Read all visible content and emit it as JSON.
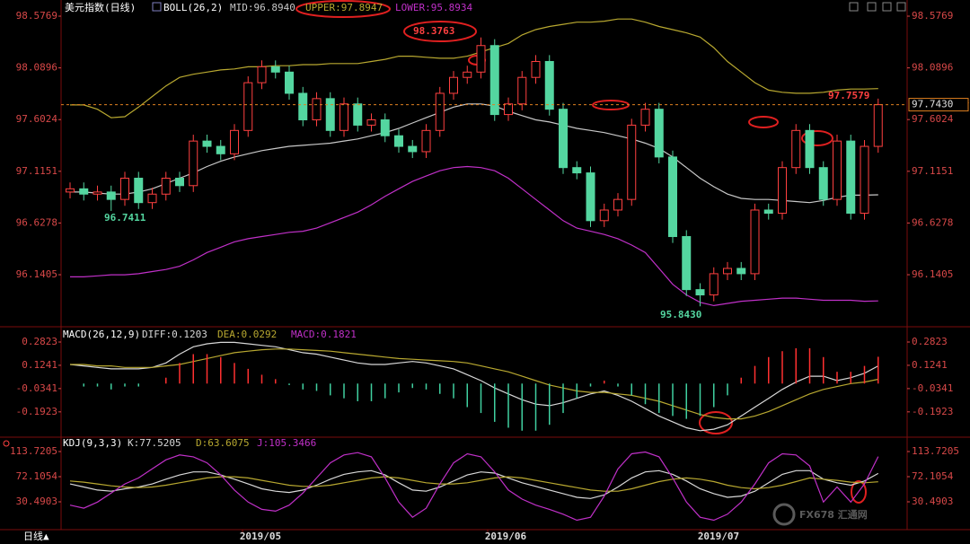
{
  "chart_data": [
    {
      "type": "candlestick",
      "title": "美元指数(日线)",
      "indicator": "BOLL(26,2)",
      "ylim": [
        95.667,
        98.687
      ],
      "yticks": [
        98.5769,
        98.0896,
        97.6024,
        97.1151,
        96.6278,
        96.1405
      ],
      "up_color": "#ff4040",
      "down_color": "#54d6a0",
      "candles": {
        "open": [
          96.92,
          96.95,
          96.9,
          96.92,
          96.85,
          97.05,
          96.82,
          96.9,
          97.05,
          96.98,
          97.4,
          97.35,
          97.28,
          97.5,
          97.95,
          98.1,
          98.05,
          97.85,
          97.6,
          97.8,
          97.5,
          97.75,
          97.55,
          97.6,
          97.45,
          97.35,
          97.3,
          97.5,
          97.85,
          98.0,
          98.05,
          98.3,
          97.65,
          97.75,
          98.0,
          98.15,
          97.7,
          97.15,
          97.1,
          96.65,
          96.75,
          96.85,
          97.55,
          97.7,
          97.25,
          96.5,
          96.0,
          95.95,
          96.15,
          96.2,
          96.15,
          96.75,
          96.72,
          97.15,
          97.5,
          97.15,
          96.85,
          97.4,
          96.72,
          97.35
        ],
        "high": [
          97.01,
          97.01,
          96.98,
          96.98,
          97.11,
          97.11,
          96.96,
          97.11,
          97.11,
          97.46,
          97.46,
          97.41,
          97.56,
          98.01,
          98.16,
          98.16,
          98.11,
          97.91,
          97.86,
          97.86,
          97.81,
          97.81,
          97.66,
          97.66,
          97.51,
          97.41,
          97.56,
          97.91,
          98.06,
          98.11,
          98.3763,
          98.36,
          97.81,
          98.06,
          98.21,
          98.21,
          97.76,
          97.21,
          97.16,
          96.81,
          96.91,
          97.61,
          97.76,
          97.76,
          97.31,
          96.56,
          96.06,
          96.21,
          96.26,
          96.26,
          96.81,
          96.81,
          97.21,
          97.56,
          97.56,
          97.21,
          97.46,
          97.46,
          97.41,
          97.8
        ],
        "low": [
          96.86,
          96.84,
          96.84,
          96.7411,
          96.79,
          96.76,
          96.76,
          96.84,
          96.92,
          96.92,
          97.29,
          97.22,
          97.22,
          97.44,
          97.89,
          97.99,
          97.79,
          97.54,
          97.54,
          97.44,
          97.44,
          97.49,
          97.49,
          97.39,
          97.29,
          97.24,
          97.24,
          97.44,
          97.79,
          97.94,
          97.99,
          97.59,
          97.59,
          97.69,
          97.94,
          97.64,
          97.09,
          97.04,
          96.59,
          96.59,
          96.69,
          96.79,
          97.49,
          97.19,
          96.44,
          95.94,
          95.843,
          95.89,
          96.09,
          96.09,
          96.09,
          96.66,
          96.66,
          97.09,
          97.09,
          96.79,
          96.79,
          96.66,
          96.66,
          97.29
        ],
        "close": [
          96.95,
          96.9,
          96.92,
          96.85,
          97.05,
          96.82,
          96.9,
          97.05,
          96.98,
          97.4,
          97.35,
          97.28,
          97.5,
          97.95,
          98.1,
          98.05,
          97.85,
          97.6,
          97.8,
          97.5,
          97.75,
          97.55,
          97.6,
          97.45,
          97.35,
          97.3,
          97.5,
          97.85,
          98.0,
          98.05,
          98.3,
          97.65,
          97.75,
          98.0,
          98.15,
          97.7,
          97.15,
          97.1,
          96.65,
          96.75,
          96.85,
          97.55,
          97.7,
          97.25,
          96.5,
          96.0,
          95.95,
          96.15,
          96.2,
          96.15,
          96.75,
          96.72,
          97.15,
          97.5,
          97.15,
          96.85,
          97.4,
          96.72,
          97.35,
          97.743
        ]
      },
      "series": [
        {
          "label": "MID:96.8940",
          "color": "#c8c8c8",
          "values": [
            96.92,
            96.92,
            96.91,
            96.9,
            96.9,
            96.92,
            96.95,
            97.0,
            97.05,
            97.1,
            97.16,
            97.21,
            97.25,
            97.28,
            97.31,
            97.33,
            97.35,
            97.36,
            97.37,
            97.38,
            97.4,
            97.42,
            97.45,
            97.48,
            97.52,
            97.57,
            97.62,
            97.67,
            97.72,
            97.75,
            97.75,
            97.73,
            97.68,
            97.64,
            97.6,
            97.58,
            97.55,
            97.52,
            97.5,
            97.48,
            97.45,
            97.42,
            97.38,
            97.33,
            97.25,
            97.15,
            97.05,
            96.97,
            96.9,
            96.86,
            96.85,
            96.85,
            96.84,
            96.83,
            96.82,
            96.84,
            96.87,
            96.89,
            96.89,
            96.894
          ]
        },
        {
          "label": "UPPER:97.8947",
          "color": "#b8a830",
          "values": [
            97.74,
            97.74,
            97.7,
            97.62,
            97.63,
            97.72,
            97.82,
            97.92,
            98.0,
            98.03,
            98.05,
            98.07,
            98.08,
            98.1,
            98.1,
            98.11,
            98.11,
            98.12,
            98.12,
            98.13,
            98.13,
            98.13,
            98.15,
            98.17,
            98.2,
            98.2,
            98.19,
            98.18,
            98.18,
            98.2,
            98.24,
            98.28,
            98.32,
            98.4,
            98.45,
            98.48,
            98.5,
            98.52,
            98.52,
            98.53,
            98.55,
            98.55,
            98.52,
            98.48,
            98.45,
            98.42,
            98.38,
            98.28,
            98.15,
            98.05,
            97.95,
            97.88,
            97.86,
            97.85,
            97.85,
            97.86,
            97.88,
            97.89,
            97.89,
            97.8947
          ]
        },
        {
          "label": "LOWER:95.8934",
          "color": "#c030c8",
          "values": [
            96.12,
            96.12,
            96.13,
            96.14,
            96.14,
            96.15,
            96.17,
            96.19,
            96.22,
            96.28,
            96.35,
            96.4,
            96.45,
            96.48,
            96.5,
            96.52,
            96.54,
            96.55,
            96.58,
            96.63,
            96.68,
            96.73,
            96.8,
            96.88,
            96.95,
            97.02,
            97.07,
            97.12,
            97.15,
            97.16,
            97.15,
            97.12,
            97.05,
            96.95,
            96.85,
            96.75,
            96.65,
            96.58,
            96.55,
            96.52,
            96.48,
            96.42,
            96.35,
            96.2,
            96.05,
            95.95,
            95.88,
            95.85,
            95.87,
            95.89,
            95.9,
            95.91,
            95.92,
            95.92,
            95.91,
            95.9,
            95.9,
            95.9,
            95.89,
            95.8934
          ]
        }
      ],
      "last": {
        "value": 97.743,
        "label": "97.7430"
      },
      "annotations": [
        {
          "text": "98.3763",
          "color": "#ff4040"
        },
        {
          "text": "96.7411",
          "color": "#54d6a0"
        },
        {
          "text": "95.8430",
          "color": "#54d6a0"
        },
        {
          "text": "97.7579",
          "color": "#ff4040"
        }
      ]
    },
    {
      "type": "line",
      "title": "MACD(26,12,9)",
      "ylim": [
        -0.352,
        0.3616
      ],
      "yticks": [
        0.2823,
        0.1241,
        -0.0341,
        -0.1923
      ],
      "series": [
        {
          "label": "DIFF:0.1203",
          "color": "#d8d8d8",
          "style": "line",
          "values": [
            0.13,
            0.12,
            0.11,
            0.1,
            0.1,
            0.1,
            0.11,
            0.14,
            0.2,
            0.25,
            0.27,
            0.28,
            0.28,
            0.27,
            0.26,
            0.25,
            0.23,
            0.21,
            0.2,
            0.18,
            0.16,
            0.14,
            0.13,
            0.13,
            0.14,
            0.15,
            0.14,
            0.12,
            0.1,
            0.06,
            0.02,
            -0.03,
            -0.07,
            -0.11,
            -0.14,
            -0.15,
            -0.13,
            -0.1,
            -0.07,
            -0.05,
            -0.08,
            -0.12,
            -0.17,
            -0.22,
            -0.26,
            -0.3,
            -0.32,
            -0.31,
            -0.28,
            -0.22,
            -0.16,
            -0.1,
            -0.04,
            0.01,
            0.05,
            0.05,
            0.02,
            0.04,
            0.07,
            0.1203
          ]
        },
        {
          "label": "DEA:0.0292",
          "color": "#b8a830",
          "style": "line",
          "values": [
            0.13,
            0.13,
            0.12,
            0.12,
            0.11,
            0.11,
            0.11,
            0.12,
            0.13,
            0.15,
            0.17,
            0.19,
            0.21,
            0.22,
            0.23,
            0.235,
            0.235,
            0.23,
            0.225,
            0.22,
            0.21,
            0.2,
            0.19,
            0.18,
            0.17,
            0.165,
            0.16,
            0.155,
            0.15,
            0.14,
            0.12,
            0.1,
            0.08,
            0.05,
            0.02,
            -0.01,
            -0.03,
            -0.05,
            -0.06,
            -0.06,
            -0.07,
            -0.08,
            -0.1,
            -0.12,
            -0.15,
            -0.18,
            -0.21,
            -0.23,
            -0.24,
            -0.24,
            -0.22,
            -0.19,
            -0.15,
            -0.11,
            -0.07,
            -0.04,
            -0.02,
            0.0,
            0.01,
            0.0292
          ]
        },
        {
          "label": "MACD:0.1821",
          "color": "#c030c8",
          "style": "bar",
          "up_color": "#ff3030",
          "down_color": "#40d0a0",
          "values": [
            0,
            -0.02,
            -0.02,
            -0.04,
            -0.02,
            -0.02,
            0,
            0.04,
            0.14,
            0.2,
            0.2,
            0.18,
            0.14,
            0.1,
            0.06,
            0.03,
            -0.01,
            -0.04,
            -0.05,
            -0.08,
            -0.1,
            -0.12,
            -0.12,
            -0.1,
            -0.06,
            -0.03,
            -0.04,
            -0.07,
            -0.1,
            -0.16,
            -0.2,
            -0.26,
            -0.3,
            -0.32,
            -0.32,
            -0.28,
            -0.2,
            -0.1,
            -0.02,
            0.02,
            -0.02,
            -0.08,
            -0.14,
            -0.2,
            -0.22,
            -0.24,
            -0.22,
            -0.16,
            -0.08,
            0.04,
            0.12,
            0.18,
            0.22,
            0.24,
            0.24,
            0.18,
            0.08,
            0.08,
            0.12,
            0.1821
          ]
        }
      ]
    },
    {
      "type": "line",
      "title": "KDJ(9,3,3)",
      "ylim": [
        -12.6,
        133.04
      ],
      "yticks": [
        113.7205,
        72.1054,
        30.4903
      ],
      "series": [
        {
          "label": "K:77.5205",
          "color": "#d8d8d8",
          "style": "line",
          "values": [
            60,
            55,
            50,
            48,
            52,
            55,
            60,
            68,
            75,
            80,
            80,
            75,
            68,
            60,
            52,
            48,
            46,
            50,
            58,
            68,
            76,
            80,
            82,
            75,
            62,
            50,
            48,
            55,
            65,
            75,
            80,
            78,
            70,
            62,
            56,
            50,
            44,
            38,
            36,
            42,
            55,
            70,
            80,
            82,
            76,
            65,
            52,
            44,
            38,
            40,
            48,
            62,
            76,
            82,
            82,
            68,
            62,
            58,
            65,
            77.5205
          ]
        },
        {
          "label": "D:63.6075",
          "color": "#b8a830",
          "style": "line",
          "values": [
            65,
            63,
            60,
            57,
            55,
            54,
            55,
            58,
            62,
            66,
            70,
            72,
            72,
            70,
            66,
            62,
            58,
            56,
            56,
            58,
            62,
            66,
            70,
            72,
            70,
            66,
            62,
            60,
            60,
            62,
            66,
            70,
            72,
            70,
            66,
            62,
            58,
            54,
            50,
            48,
            48,
            52,
            58,
            64,
            68,
            70,
            68,
            64,
            58,
            54,
            52,
            54,
            58,
            64,
            70,
            68,
            66,
            63,
            62,
            63.6075
          ]
        },
        {
          "label": "J:105.3466",
          "color": "#c030c8",
          "style": "line",
          "values": [
            25,
            20,
            30,
            45,
            60,
            70,
            85,
            100,
            108,
            105,
            95,
            75,
            50,
            30,
            18,
            15,
            25,
            45,
            70,
            95,
            108,
            112,
            105,
            70,
            30,
            5,
            20,
            60,
            95,
            110,
            105,
            80,
            50,
            35,
            25,
            18,
            10,
            0,
            5,
            40,
            85,
            110,
            113,
            105,
            70,
            30,
            5,
            0,
            10,
            30,
            60,
            95,
            110,
            108,
            90,
            30,
            55,
            30,
            60,
            105.3466
          ]
        }
      ],
      "x_labels": [
        "2019/05",
        "2019/06",
        "2019/07"
      ]
    }
  ],
  "footer": "日线",
  "watermark": "FX678 汇通网"
}
